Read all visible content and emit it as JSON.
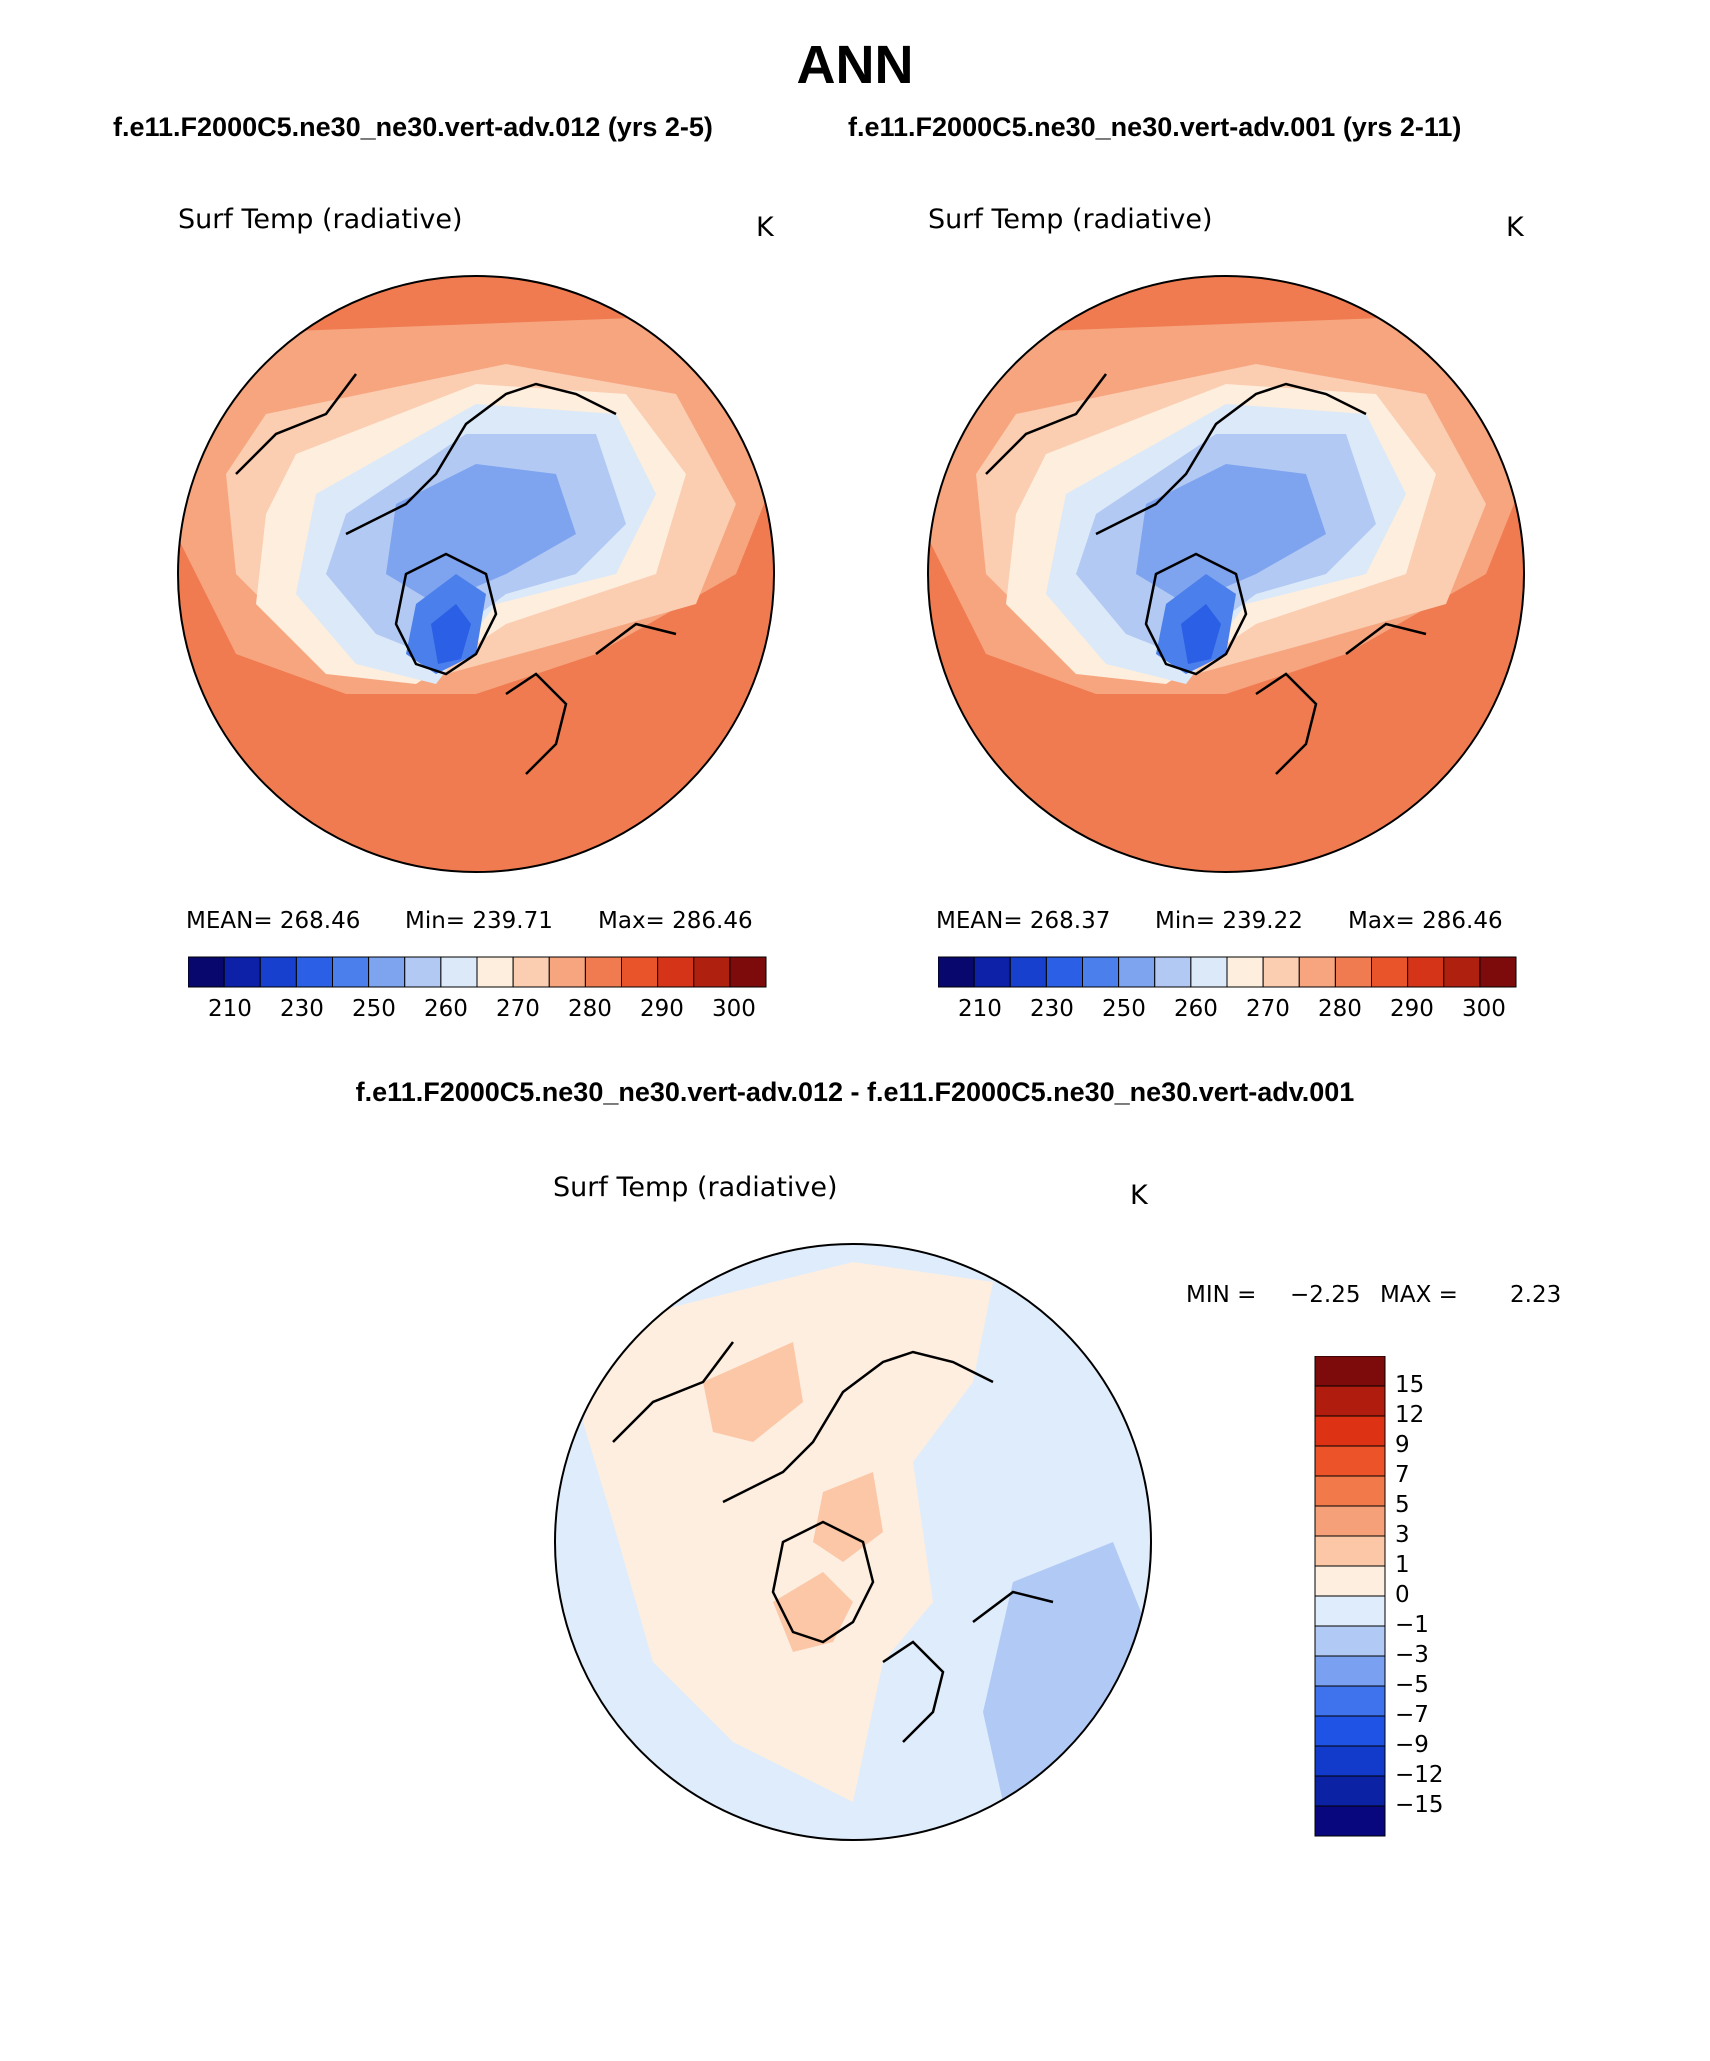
{
  "figure_title": "ANN",
  "colors": {
    "abs_scale": [
      "#08076e",
      "#0d20a8",
      "#1740cf",
      "#2a5fe6",
      "#4a7fec",
      "#7ea3ef",
      "#b2c9f3",
      "#dce9f9",
      "#fdeedd",
      "#fbcdb1",
      "#f6a57f",
      "#f07b50",
      "#e9542a",
      "#d63418",
      "#b0200f",
      "#7e0b0b"
    ],
    "diff_scale": [
      "#08077e",
      "#0a22a3",
      "#123bcc",
      "#1f53e6",
      "#3f72ed",
      "#7aa1f1",
      "#b0caf5",
      "#dfecfb",
      "#fdeee0",
      "#fbc7a6",
      "#f6a07a",
      "#f27a4a",
      "#ec5328",
      "#dd3314",
      "#b01d0e",
      "#7e0b0b"
    ]
  },
  "panels": [
    {
      "run_title": "f.e11.F2000C5.ne30_ne30.vert-adv.012 (yrs 2-5)",
      "variable": "Surf Temp (radiative)",
      "units": "K",
      "mean_text": "MEAN= 268.46",
      "min_text": "Min= 239.71",
      "max_text": "Max= 286.46",
      "colorbar_ticks": [
        "210",
        "230",
        "250",
        "260",
        "270",
        "280",
        "290",
        "300"
      ]
    },
    {
      "run_title": "f.e11.F2000C5.ne30_ne30.vert-adv.001 (yrs 2-11)",
      "variable": "Surf Temp (radiative)",
      "units": "K",
      "mean_text": "MEAN= 268.37",
      "min_text": "Min= 239.22",
      "max_text": "Max= 286.46",
      "colorbar_ticks": [
        "210",
        "230",
        "250",
        "260",
        "270",
        "280",
        "290",
        "300"
      ]
    }
  ],
  "difference": {
    "title": "f.e11.F2000C5.ne30_ne30.vert-adv.012 - f.e11.F2000C5.ne30_ne30.vert-adv.001",
    "variable": "Surf Temp (radiative)",
    "units": "K",
    "min_label": "MIN =",
    "min_value": "−2.25",
    "max_label": "MAX =",
    "max_value": "2.23",
    "colorbar_ticks": [
      "15",
      "12",
      "9",
      "7",
      "5",
      "3",
      "1",
      "0",
      "−1",
      "−3",
      "−5",
      "−7",
      "−9",
      "−12",
      "−15"
    ]
  }
}
